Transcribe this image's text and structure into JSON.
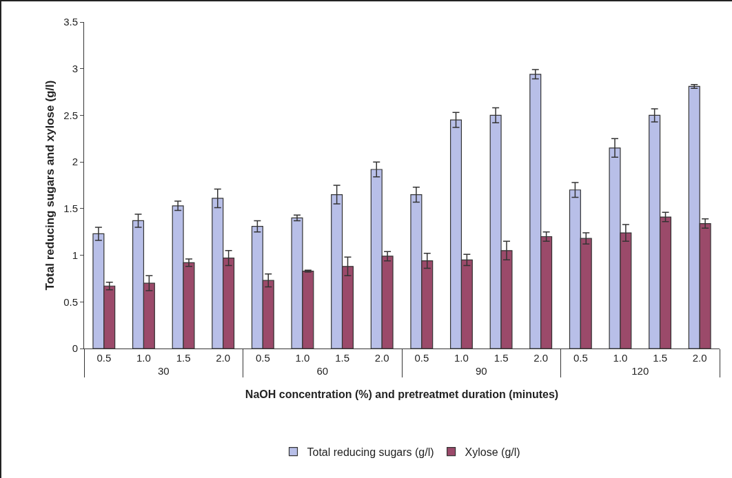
{
  "chart_data": {
    "type": "bar",
    "xlabel": "NaOH concentration (%) and pretreatmet duration (minutes)",
    "ylabel": "Total reducing sugars and xylose (g/l)",
    "categories": [
      "0.5",
      "1.0",
      "1.5",
      "2.0",
      "0.5",
      "1.0",
      "1.5",
      "2.0",
      "0.5",
      "1.0",
      "1.5",
      "2.0",
      "0.5",
      "1.0",
      "1.5",
      "2.0"
    ],
    "annotations": [
      "30",
      "60",
      "90",
      "120"
    ],
    "series": [
      {
        "name": "Total reducing sugars (g/l)",
        "color": "#b8bfe8",
        "values": [
          1.23,
          1.37,
          1.53,
          1.61,
          1.31,
          1.4,
          1.65,
          1.92,
          1.65,
          2.45,
          2.5,
          2.94,
          1.7,
          2.15,
          2.5,
          2.81
        ],
        "errors": [
          0.07,
          0.07,
          0.05,
          0.1,
          0.06,
          0.03,
          0.1,
          0.08,
          0.08,
          0.08,
          0.08,
          0.05,
          0.08,
          0.1,
          0.07,
          0.02
        ]
      },
      {
        "name": "Xylose (g/l)",
        "color": "#9b4a6a",
        "values": [
          0.67,
          0.7,
          0.92,
          0.97,
          0.73,
          0.83,
          0.88,
          0.99,
          0.94,
          0.95,
          1.05,
          1.2,
          1.18,
          1.24,
          1.41,
          1.34
        ],
        "errors": [
          0.04,
          0.08,
          0.04,
          0.08,
          0.07,
          0.01,
          0.1,
          0.05,
          0.08,
          0.06,
          0.1,
          0.05,
          0.06,
          0.09,
          0.05,
          0.05
        ]
      }
    ],
    "ylim": [
      0,
      3.5
    ],
    "yticks": [
      0,
      0.5,
      1,
      1.5,
      2,
      2.5,
      3,
      3.5
    ],
    "grid": false,
    "legend": "bottom"
  }
}
